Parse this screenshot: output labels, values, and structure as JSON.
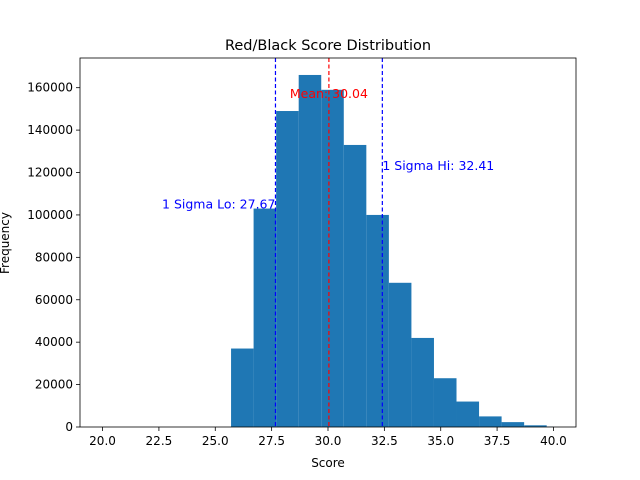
{
  "chart_data": {
    "type": "bar",
    "title": "Red/Black Score Distribution",
    "xlabel": "Score",
    "ylabel": "Frequency",
    "xlim": [
      19.0,
      41.0
    ],
    "ylim": [
      0,
      174000
    ],
    "xticks": [
      20.0,
      22.5,
      25.0,
      27.5,
      30.0,
      32.5,
      35.0,
      37.5,
      40.0
    ],
    "xtick_labels": [
      "20.0",
      "22.5",
      "25.0",
      "27.5",
      "30.0",
      "32.5",
      "35.0",
      "37.5",
      "40.0"
    ],
    "yticks": [
      0,
      20000,
      40000,
      60000,
      80000,
      100000,
      120000,
      140000,
      160000
    ],
    "ytick_labels": [
      "0",
      "20000",
      "40000",
      "60000",
      "80000",
      "100000",
      "120000",
      "140000",
      "160000"
    ],
    "bar_color": "#1f77b4",
    "bins": [
      {
        "start": 20.0,
        "end": 21.0,
        "value": 0
      },
      {
        "start": 21.0,
        "end": 22.0,
        "value": 0
      },
      {
        "start": 22.0,
        "end": 23.0,
        "value": 0
      },
      {
        "start": 23.0,
        "end": 24.0,
        "value": 0
      },
      {
        "start": 24.0,
        "end": 25.0,
        "value": 0
      },
      {
        "start": 25.0,
        "end": 25.7,
        "value": 0
      },
      {
        "start": 25.7,
        "end": 26.7,
        "value": 37000
      },
      {
        "start": 26.7,
        "end": 27.7,
        "value": 103000
      },
      {
        "start": 27.7,
        "end": 28.7,
        "value": 149000
      },
      {
        "start": 28.7,
        "end": 29.7,
        "value": 166000
      },
      {
        "start": 29.7,
        "end": 30.7,
        "value": 159000
      },
      {
        "start": 30.7,
        "end": 31.7,
        "value": 133000
      },
      {
        "start": 31.7,
        "end": 32.7,
        "value": 100000
      },
      {
        "start": 32.7,
        "end": 33.7,
        "value": 68000
      },
      {
        "start": 33.7,
        "end": 34.7,
        "value": 42000
      },
      {
        "start": 34.7,
        "end": 35.7,
        "value": 23000
      },
      {
        "start": 35.7,
        "end": 36.7,
        "value": 12000
      },
      {
        "start": 36.7,
        "end": 37.7,
        "value": 5000
      },
      {
        "start": 37.7,
        "end": 38.7,
        "value": 2300
      },
      {
        "start": 38.7,
        "end": 39.7,
        "value": 800
      },
      {
        "start": 39.7,
        "end": 40.0,
        "value": 150
      }
    ],
    "vlines": [
      {
        "name": "mean",
        "x": 30.04,
        "color": "#ff0000",
        "label": "Mean: 30.04",
        "label_y": 157000,
        "label_anchor": "middle"
      },
      {
        "name": "sigma-lo",
        "x": 27.67,
        "color": "#0000ff",
        "label": "1 Sigma Lo: 27.67",
        "label_y": 105000,
        "label_anchor": "end"
      },
      {
        "name": "sigma-hi",
        "x": 32.41,
        "color": "#0000ff",
        "label": "1 Sigma Hi: 32.41",
        "label_y": 123000,
        "label_anchor": "start"
      }
    ]
  }
}
